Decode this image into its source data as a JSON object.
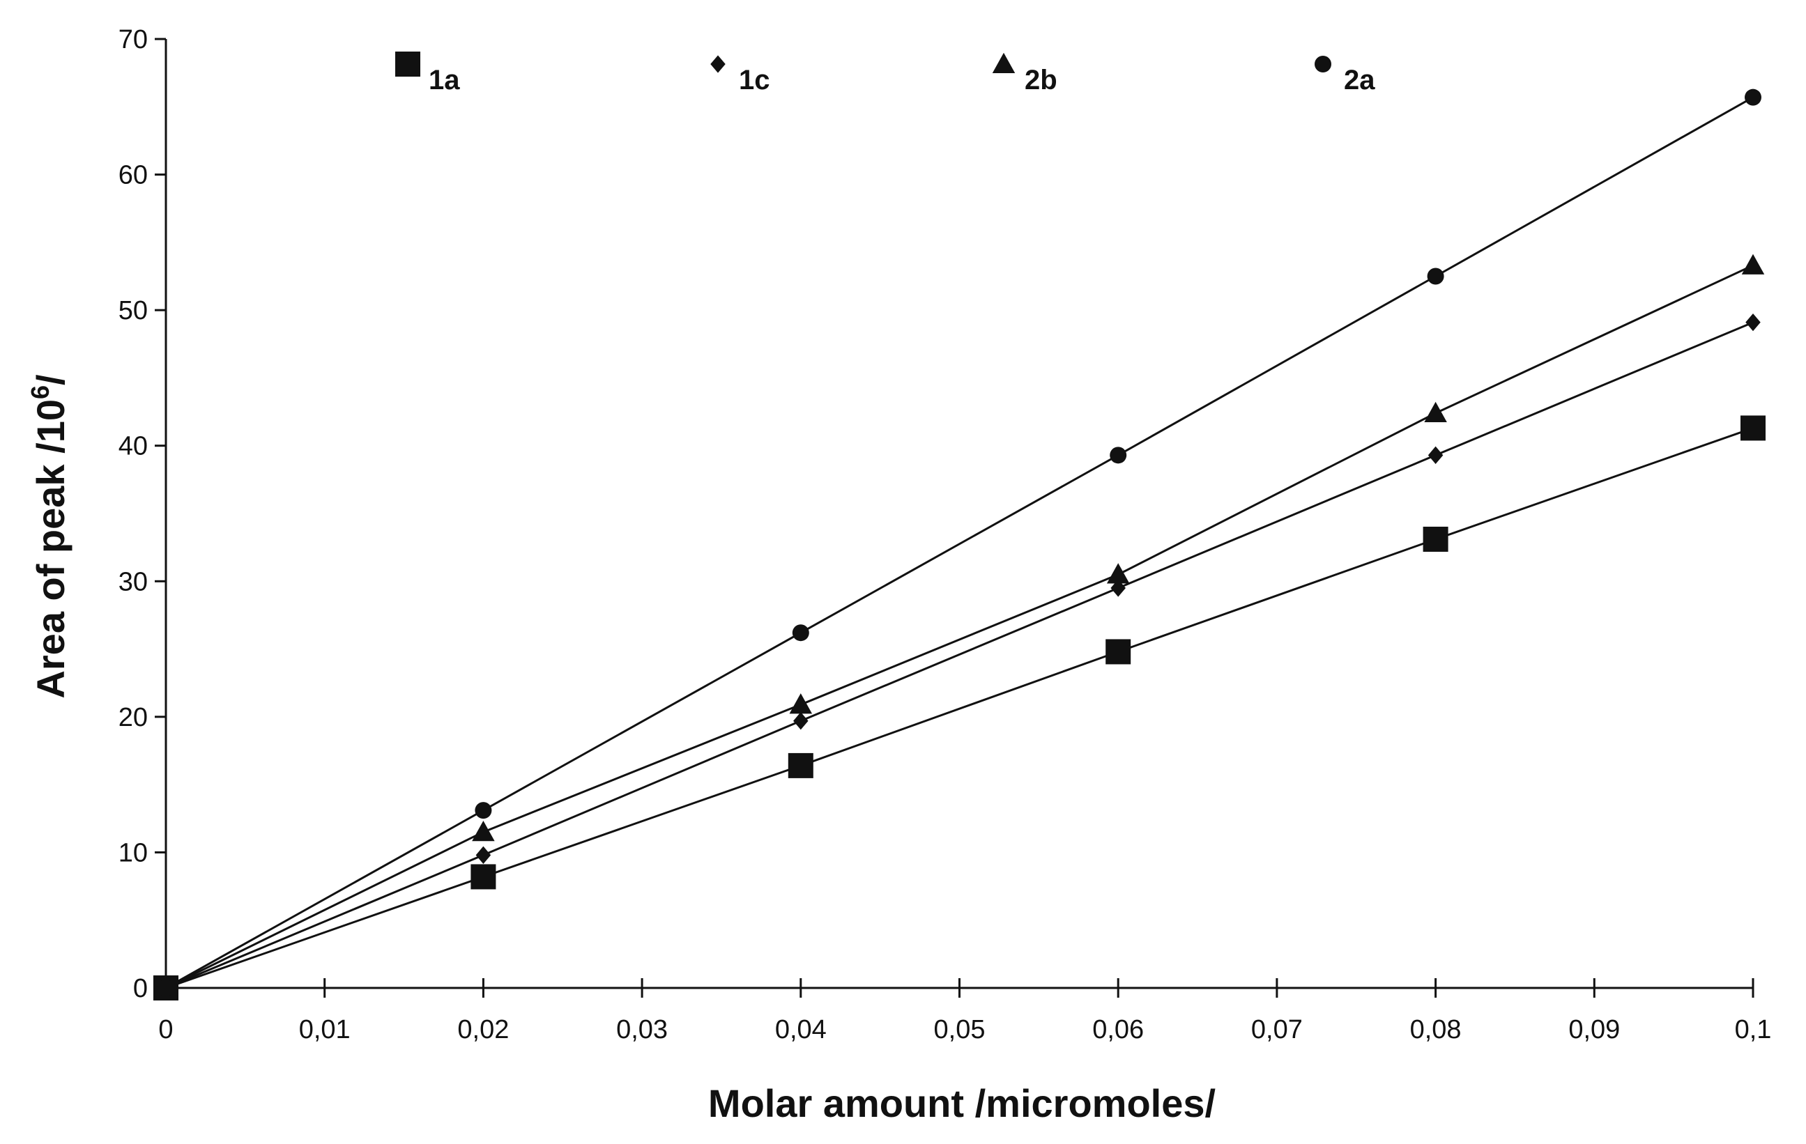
{
  "chart_data": {
    "type": "line",
    "title": "",
    "xlabel": "Molar amount /micromoles/",
    "ylabel": "Area of peak /10",
    "ylabel_superscript": "6",
    "ylabel_suffix": "/",
    "xlim": [
      0,
      0.1
    ],
    "ylim": [
      0,
      70
    ],
    "x_ticks": [
      0,
      0.01,
      0.02,
      0.03,
      0.04,
      0.05,
      0.06,
      0.07,
      0.08,
      0.09,
      0.1
    ],
    "x_tick_labels": [
      "0",
      "0,01",
      "0,02",
      "0,03",
      "0,04",
      "0,05",
      "0,06",
      "0,07",
      "0,08",
      "0,09",
      "0,1"
    ],
    "y_ticks": [
      0,
      10,
      20,
      30,
      40,
      50,
      60,
      70
    ],
    "y_tick_labels": [
      "0",
      "10",
      "20",
      "30",
      "40",
      "50",
      "60",
      "70"
    ],
    "grid": false,
    "legend_position": "top",
    "x": [
      0,
      0.02,
      0.04,
      0.06,
      0.08,
      0.1
    ],
    "series": [
      {
        "name": "1a",
        "marker": "square",
        "values": [
          0,
          8.2,
          16.4,
          24.8,
          33.1,
          41.3
        ]
      },
      {
        "name": "1c",
        "marker": "diamond",
        "values": [
          0,
          9.8,
          19.7,
          29.5,
          39.3,
          49.1
        ]
      },
      {
        "name": "2b",
        "marker": "triangle",
        "values": [
          0,
          11.5,
          20.9,
          30.5,
          42.4,
          53.3
        ]
      },
      {
        "name": "2a",
        "marker": "circle",
        "values": [
          0,
          13.1,
          26.2,
          39.3,
          52.5,
          65.7
        ]
      }
    ],
    "colors": {
      "ink": "#111111",
      "background": "#ffffff"
    }
  }
}
